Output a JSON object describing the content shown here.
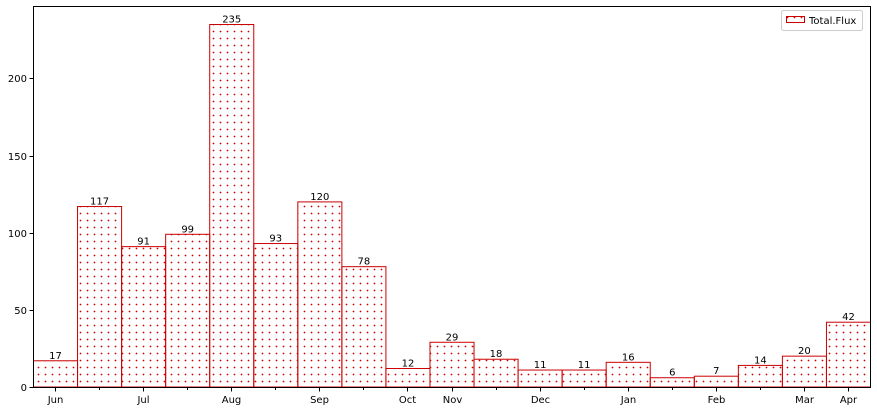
{
  "chart_data": {
    "type": "bar",
    "title": "",
    "xlabel": "",
    "ylabel": "",
    "ylim": [
      0,
      247
    ],
    "yticks": [
      0,
      50,
      100,
      150,
      200
    ],
    "grid": false,
    "legend_position": "top-right",
    "bar_fill": "hatched-dots",
    "categories": [
      "",
      "",
      "",
      "",
      "",
      "",
      "",
      "",
      "",
      "",
      "",
      "",
      "",
      "",
      "",
      "",
      "",
      "",
      ""
    ],
    "series": [
      {
        "name": "Total.Flux",
        "color": "#cc0000",
        "values": [
          17,
          117,
          91,
          99,
          235,
          93,
          120,
          78,
          12,
          29,
          18,
          11,
          11,
          16,
          6,
          7,
          14,
          20,
          42
        ]
      }
    ],
    "x_tick_labels": [
      {
        "label": "Jun",
        "position": 0.5
      },
      {
        "label": "Jul",
        "position": 2.5
      },
      {
        "label": "Aug",
        "position": 4.5
      },
      {
        "label": "Sep",
        "position": 6.5
      },
      {
        "label": "Oct",
        "position": 8.5
      },
      {
        "label": "Nov",
        "position": 9.5
      },
      {
        "label": "Dec",
        "position": 11.5
      },
      {
        "label": "Jan",
        "position": 13.5
      },
      {
        "label": "Feb",
        "position": 15.5
      },
      {
        "label": "Mar",
        "position": 17.5
      },
      {
        "label": "Apr",
        "position": 18.5
      }
    ],
    "x_minor_ticks": [
      1.5,
      3.5,
      5.5,
      7.5,
      10.5,
      12.5,
      14.5,
      16.5
    ]
  }
}
